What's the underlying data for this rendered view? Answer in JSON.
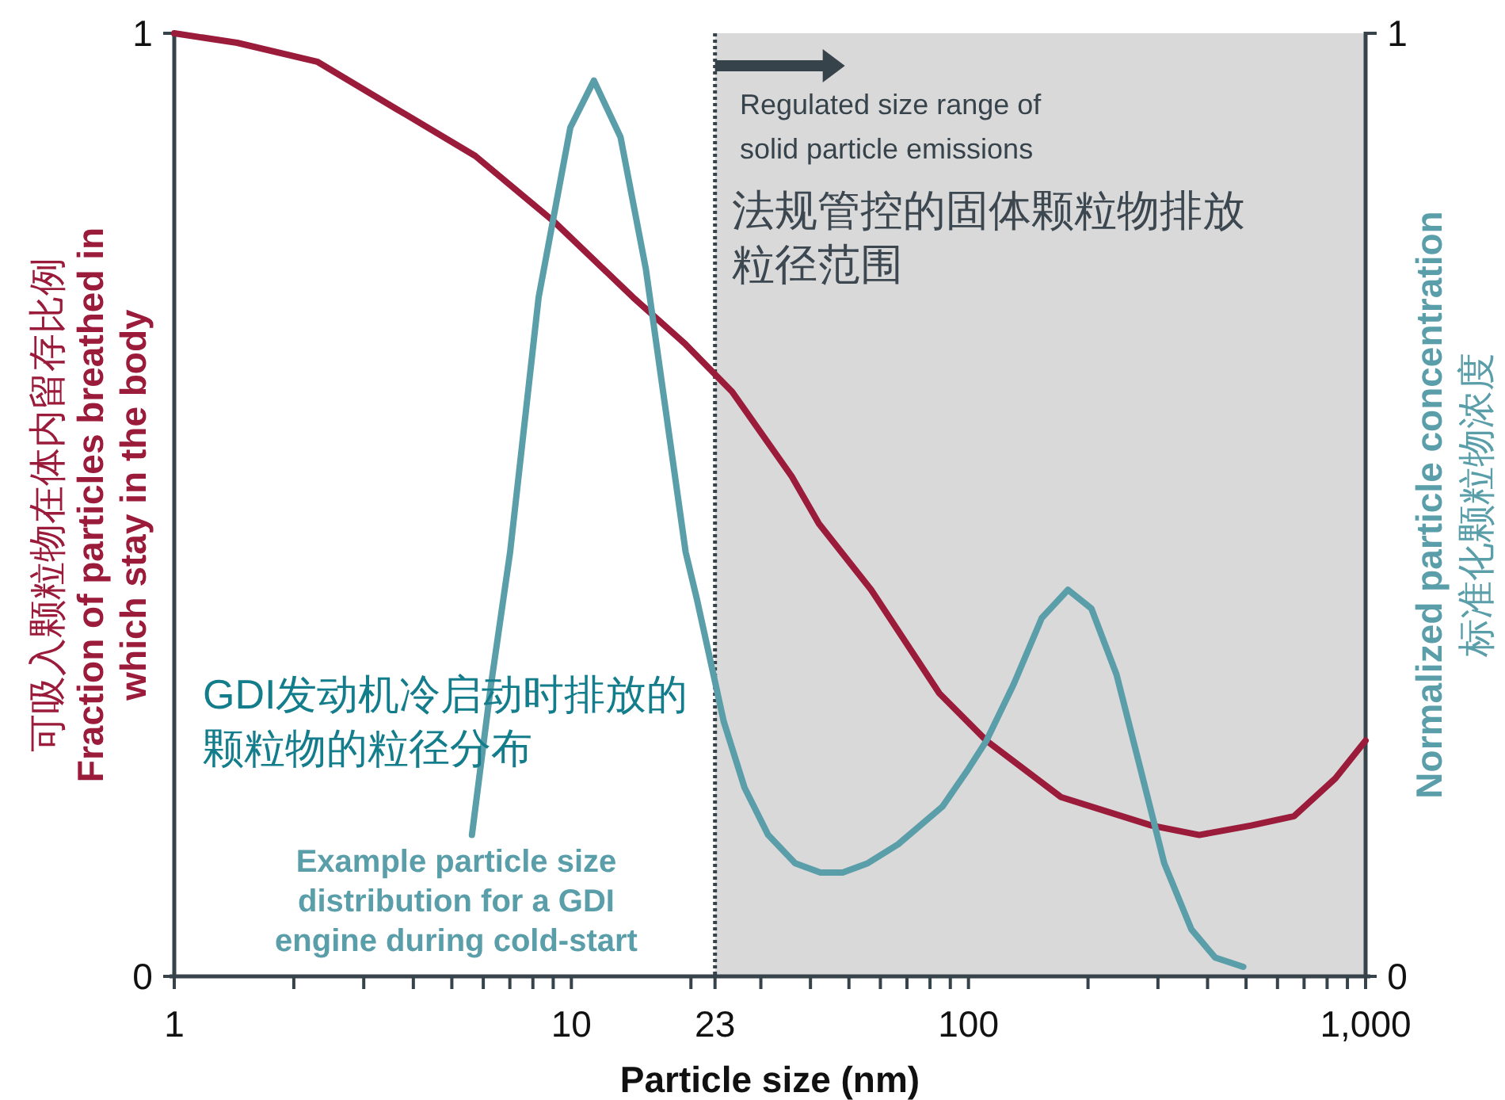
{
  "chart_data": {
    "type": "line",
    "xlabel": "Particle size (nm)",
    "ylabel": "可吸入颗粒物在体内留存比例\nFraction of particles breathed in\nwhich stay in the body",
    "y2label": "Normalized particle concentration\n标准化颗粒物浓度",
    "log": "x",
    "xlim": [
      1,
      1000
    ],
    "xticks": [
      1,
      {
        "value": 2,
        "label": null
      },
      {
        "value": 3,
        "label": null
      },
      {
        "value": 4,
        "label": null
      },
      {
        "value": 5,
        "label": null
      },
      {
        "value": 6,
        "label": null
      },
      {
        "value": 7,
        "label": null
      },
      {
        "value": 8,
        "label": null
      },
      {
        "value": 9,
        "label": null
      },
      10,
      {
        "value": 20,
        "label": null
      },
      23,
      {
        "value": 30,
        "label": null
      },
      {
        "value": 40,
        "label": null
      },
      {
        "value": 50,
        "label": null
      },
      {
        "value": 60,
        "label": null
      },
      {
        "value": 70,
        "label": null
      },
      {
        "value": 80,
        "label": null
      },
      {
        "value": 90,
        "label": null
      },
      100,
      {
        "value": 200,
        "label": null
      },
      {
        "value": 300,
        "label": null
      },
      {
        "value": 400,
        "label": null
      },
      {
        "value": 500,
        "label": null
      },
      {
        "value": 600,
        "label": null
      },
      {
        "value": 700,
        "label": null
      },
      {
        "value": 800,
        "label": null
      },
      {
        "value": 900,
        "label": null
      },
      {
        "value": 1000,
        "label": "1,000"
      }
    ],
    "ylim": [
      0,
      1
    ],
    "yticks": [
      0,
      1
    ],
    "y2lim": [
      0,
      1
    ],
    "y2ticks": [
      0,
      1
    ],
    "bands": [
      {
        "axis": "x",
        "from": 23,
        "to": 1000,
        "color": "#d9d9d9"
      }
    ],
    "ref_lines": [
      {
        "axis": "x",
        "value": 23,
        "line_style": "dotted",
        "color": "#37434b"
      }
    ],
    "series": [
      {
        "color": "#9b1b3b",
        "x": [
          1,
          1.44,
          2.29,
          3.62,
          5.73,
          9.06,
          14.3,
          19.4,
          25.4,
          35.9,
          42,
          56.9,
          84.5,
          111,
          171,
          289,
          381,
          515,
          661,
          839,
          1000
        ],
        "values": [
          1.0,
          0.99,
          0.97,
          0.92,
          0.87,
          0.8,
          0.72,
          0.67,
          0.62,
          0.53,
          0.48,
          0.41,
          0.3,
          0.25,
          0.19,
          0.16,
          0.15,
          0.16,
          0.17,
          0.21,
          0.25
        ]
      },
      {
        "color": "#5a9ea9",
        "axis": "y2",
        "x": [
          5.62,
          6.28,
          7.01,
          8.27,
          9.94,
          11.4,
          13.3,
          15.4,
          19.4,
          20.7,
          24.2,
          27.3,
          31.3,
          36.6,
          42.4,
          48.2,
          55.8,
          66.5,
          86,
          100,
          111,
          130,
          153,
          178,
          204,
          236,
          271,
          311,
          364,
          418,
          492
        ],
        "values": [
          0.15,
          0.31,
          0.45,
          0.72,
          0.9,
          0.95,
          0.89,
          0.75,
          0.45,
          0.4,
          0.27,
          0.2,
          0.15,
          0.12,
          0.11,
          0.11,
          0.12,
          0.14,
          0.18,
          0.22,
          0.25,
          0.31,
          0.38,
          0.41,
          0.39,
          0.32,
          0.22,
          0.12,
          0.05,
          0.02,
          0.01
        ]
      }
    ],
    "annotations": [
      "Regulated size range of\nsolid particle emissions",
      "法规管控的固体颗粒物排放",
      "粒径范围",
      "GDI发动机冷启动时排放的",
      "颗粒物的粒径分布",
      "Example particle size\ndistribution for a GDI\nengine during cold-start"
    ]
  }
}
